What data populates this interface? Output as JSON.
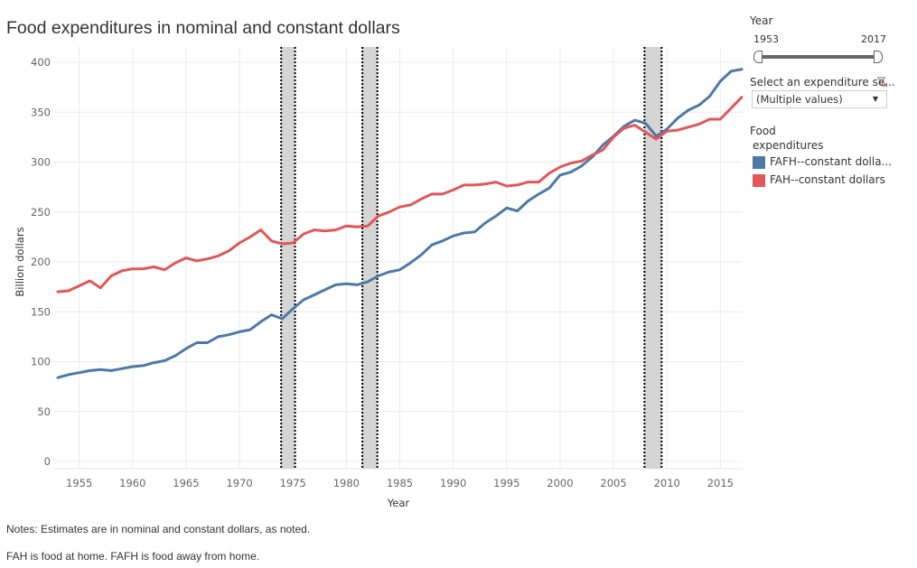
{
  "title": "Food expenditures in nominal and constant dollars",
  "notes": [
    "Notes: Estimates are in nominal and constant dollars, as noted.",
    "FAH is food at home.  FAFH is food away from home."
  ],
  "filters": {
    "year": {
      "label": "Year",
      "min_label": "1953",
      "max_label": "2017",
      "range": [
        1953,
        2017
      ]
    },
    "expenditure_series": {
      "label": "Select an expenditure se...",
      "value": "(Multiple values)",
      "clear_filter_icon": "filter-clear-icon",
      "caret_icon": "caret-down-icon"
    }
  },
  "legend": {
    "title_line1": "Food",
    "title_line2": "expenditures",
    "items": [
      {
        "label": "FAFH--constant dolla...",
        "color": "#4e79a7"
      },
      {
        "label": "FAH--constant dollars",
        "color": "#e15759"
      }
    ]
  },
  "chart_data": {
    "type": "line",
    "title": "Food expenditures in nominal and constant dollars",
    "xlabel": "Year",
    "ylabel": "Billion dollars",
    "xlim": [
      1953,
      2017
    ],
    "ylim": [
      0,
      400
    ],
    "x_ticks": [
      1955,
      1960,
      1965,
      1970,
      1975,
      1980,
      1985,
      1990,
      1995,
      2000,
      2005,
      2010,
      2015
    ],
    "y_ticks": [
      0,
      50,
      100,
      150,
      200,
      250,
      300,
      350,
      400
    ],
    "grid": true,
    "legend_position": "right",
    "recession_bands": [
      {
        "start": 1973.9,
        "end": 1975.2
      },
      {
        "start": 1981.5,
        "end": 1982.9
      },
      {
        "start": 2007.9,
        "end": 2009.5
      }
    ],
    "x": [
      1953,
      1954,
      1955,
      1956,
      1957,
      1958,
      1959,
      1960,
      1961,
      1962,
      1963,
      1964,
      1965,
      1966,
      1967,
      1968,
      1969,
      1970,
      1971,
      1972,
      1973,
      1974,
      1975,
      1976,
      1977,
      1978,
      1979,
      1980,
      1981,
      1982,
      1983,
      1984,
      1985,
      1986,
      1987,
      1988,
      1989,
      1990,
      1991,
      1992,
      1993,
      1994,
      1995,
      1996,
      1997,
      1998,
      1999,
      2000,
      2001,
      2002,
      2003,
      2004,
      2005,
      2006,
      2007,
      2008,
      2009,
      2010,
      2011,
      2012,
      2013,
      2014,
      2015,
      2016,
      2017
    ],
    "series": [
      {
        "name": "FAFH--constant dollars",
        "color": "#4e79a7",
        "values": [
          84,
          87,
          89,
          91,
          92,
          91,
          93,
          95,
          96,
          99,
          101,
          106,
          113,
          119,
          119,
          125,
          127,
          130,
          132,
          140,
          147,
          143,
          153,
          162,
          167,
          172,
          177,
          178,
          177,
          180,
          186,
          190,
          192,
          199,
          207,
          217,
          221,
          226,
          229,
          230,
          239,
          246,
          254,
          251,
          261,
          268,
          274,
          287,
          290,
          296,
          305,
          317,
          326,
          336,
          342,
          339,
          326,
          333,
          344,
          352,
          357,
          366,
          381,
          391,
          393
        ]
      },
      {
        "name": "FAH--constant dollars",
        "color": "#e15759",
        "values": [
          170,
          171,
          176,
          181,
          174,
          186,
          191,
          193,
          193,
          195,
          192,
          199,
          204,
          201,
          203,
          206,
          211,
          219,
          225,
          232,
          221,
          218,
          219,
          228,
          232,
          231,
          232,
          236,
          235,
          236,
          246,
          250,
          255,
          257,
          263,
          268,
          268,
          272,
          277,
          277,
          278,
          280,
          276,
          277,
          280,
          280,
          289,
          295,
          299,
          301,
          307,
          312,
          325,
          334,
          337,
          330,
          323,
          331,
          332,
          335,
          338,
          343,
          343,
          354,
          365
        ]
      }
    ]
  }
}
